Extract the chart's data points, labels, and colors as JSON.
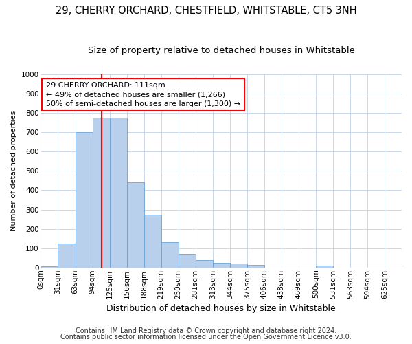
{
  "title1": "29, CHERRY ORCHARD, CHESTFIELD, WHITSTABLE, CT5 3NH",
  "title2": "Size of property relative to detached houses in Whitstable",
  "xlabel": "Distribution of detached houses by size in Whitstable",
  "ylabel": "Number of detached properties",
  "bar_labels": [
    "0sqm",
    "31sqm",
    "63sqm",
    "94sqm",
    "125sqm",
    "156sqm",
    "188sqm",
    "219sqm",
    "250sqm",
    "281sqm",
    "313sqm",
    "344sqm",
    "375sqm",
    "406sqm",
    "438sqm",
    "469sqm",
    "500sqm",
    "531sqm",
    "563sqm",
    "594sqm",
    "625sqm"
  ],
  "bar_heights": [
    8,
    125,
    700,
    775,
    775,
    440,
    275,
    130,
    70,
    40,
    25,
    20,
    12,
    0,
    0,
    0,
    10,
    0,
    0,
    0,
    0
  ],
  "bar_color": "#b8d0eb",
  "bar_edge_color": "#6aa3d4",
  "grid_color": "#c8d8ea",
  "vline_color": "red",
  "vline_x": 3.548,
  "annotation_line1": "29 CHERRY ORCHARD: 111sqm",
  "annotation_line2": "← 49% of detached houses are smaller (1,266)",
  "annotation_line3": "50% of semi-detached houses are larger (1,300) →",
  "ylim": [
    0,
    1000
  ],
  "yticks": [
    0,
    100,
    200,
    300,
    400,
    500,
    600,
    700,
    800,
    900,
    1000
  ],
  "footnote1": "Contains HM Land Registry data © Crown copyright and database right 2024.",
  "footnote2": "Contains public sector information licensed under the Open Government Licence v3.0.",
  "title1_fontsize": 10.5,
  "title2_fontsize": 9.5,
  "xlabel_fontsize": 9,
  "ylabel_fontsize": 8,
  "tick_fontsize": 7.5,
  "annot_fontsize": 8,
  "footnote_fontsize": 7
}
